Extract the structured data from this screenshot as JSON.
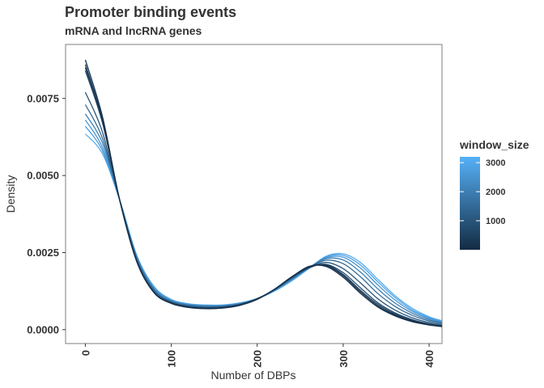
{
  "chart_data": {
    "type": "line",
    "title": "Promoter binding events",
    "subtitle": "mRNA and lncRNA genes",
    "xlabel": "Number of DBPs",
    "ylabel": "Density",
    "xlim": [
      -23,
      415
    ],
    "ylim": [
      -0.00045,
      0.00925
    ],
    "xticks": [
      0,
      100,
      200,
      300,
      400
    ],
    "yticks": [
      0.0,
      0.0025,
      0.005,
      0.0075
    ],
    "ytick_labels": [
      "0.0000",
      "0.0025",
      "0.0050",
      "0.0075"
    ],
    "grid": false,
    "legend": {
      "title": "window_size",
      "position": "right",
      "min": 0,
      "max": 3200,
      "ticks": [
        1000,
        2000,
        3000
      ],
      "color_low": "#132B43",
      "color_high": "#56B1F7"
    },
    "series": [
      {
        "window_size": 100,
        "x": [
          0,
          20,
          40,
          60,
          80,
          100,
          120,
          140,
          160,
          180,
          200,
          220,
          240,
          260,
          280,
          300,
          320,
          340,
          360,
          380,
          400,
          415
        ],
        "y": [
          0.00875,
          0.0069,
          0.0042,
          0.0022,
          0.0012,
          0.00085,
          0.00072,
          0.00068,
          0.0007,
          0.00079,
          0.00098,
          0.0013,
          0.0017,
          0.00205,
          0.00205,
          0.0017,
          0.00118,
          0.00074,
          0.00045,
          0.00026,
          0.00015,
          0.0001
        ]
      },
      {
        "window_size": 250,
        "x": [
          0,
          20,
          40,
          60,
          80,
          100,
          120,
          140,
          160,
          180,
          200,
          220,
          240,
          260,
          280,
          300,
          320,
          340,
          360,
          380,
          400,
          415
        ],
        "y": [
          0.0086,
          0.0068,
          0.0042,
          0.0022,
          0.0012,
          0.00086,
          0.00073,
          0.00069,
          0.00071,
          0.0008,
          0.00099,
          0.00131,
          0.00171,
          0.00204,
          0.00208,
          0.00175,
          0.00123,
          0.00078,
          0.00048,
          0.00028,
          0.00016,
          0.00011
        ]
      },
      {
        "window_size": 500,
        "x": [
          0,
          20,
          40,
          60,
          80,
          100,
          120,
          140,
          160,
          180,
          200,
          220,
          240,
          260,
          280,
          300,
          320,
          340,
          360,
          380,
          400,
          415
        ],
        "y": [
          0.0085,
          0.00675,
          0.0042,
          0.0022,
          0.0012,
          0.00086,
          0.00073,
          0.00069,
          0.00071,
          0.0008,
          0.00099,
          0.00131,
          0.00171,
          0.00202,
          0.0021,
          0.00179,
          0.00128,
          0.00083,
          0.00051,
          0.0003,
          0.00017,
          0.00012
        ]
      },
      {
        "window_size": 750,
        "x": [
          0,
          20,
          40,
          60,
          80,
          100,
          120,
          140,
          160,
          180,
          200,
          220,
          240,
          260,
          280,
          300,
          320,
          340,
          360,
          380,
          400,
          415
        ],
        "y": [
          0.0084,
          0.0067,
          0.0042,
          0.0022,
          0.00121,
          0.00087,
          0.00074,
          0.0007,
          0.00072,
          0.00081,
          0.001,
          0.00131,
          0.0017,
          0.002,
          0.00212,
          0.00185,
          0.00136,
          0.00088,
          0.00055,
          0.00033,
          0.00019,
          0.00013
        ]
      },
      {
        "window_size": 1000,
        "x": [
          0,
          20,
          40,
          60,
          80,
          100,
          120,
          140,
          160,
          180,
          200,
          220,
          240,
          260,
          280,
          300,
          320,
          340,
          360,
          380,
          400,
          415
        ],
        "y": [
          0.0077,
          0.0064,
          0.0042,
          0.00225,
          0.00124,
          0.00089,
          0.00076,
          0.00072,
          0.00074,
          0.00082,
          0.00101,
          0.0013,
          0.00168,
          0.002,
          0.00218,
          0.00198,
          0.00152,
          0.00101,
          0.00064,
          0.00039,
          0.00023,
          0.00016
        ]
      },
      {
        "window_size": 1500,
        "x": [
          0,
          20,
          40,
          60,
          80,
          100,
          120,
          140,
          160,
          180,
          200,
          220,
          240,
          260,
          280,
          300,
          320,
          340,
          360,
          380,
          400,
          415
        ],
        "y": [
          0.0073,
          0.0062,
          0.0042,
          0.0023,
          0.00128,
          0.00091,
          0.00078,
          0.00074,
          0.00075,
          0.00083,
          0.00101,
          0.00129,
          0.00166,
          0.00201,
          0.00225,
          0.00214,
          0.00172,
          0.00118,
          0.00076,
          0.00047,
          0.00028,
          0.0002
        ]
      },
      {
        "window_size": 2000,
        "x": [
          0,
          20,
          40,
          60,
          80,
          100,
          120,
          140,
          160,
          180,
          200,
          220,
          240,
          260,
          280,
          300,
          320,
          340,
          360,
          380,
          400,
          415
        ],
        "y": [
          0.007,
          0.00605,
          0.0042,
          0.00232,
          0.00131,
          0.00093,
          0.0008,
          0.00076,
          0.00077,
          0.00084,
          0.00101,
          0.00128,
          0.00164,
          0.00201,
          0.0023,
          0.00226,
          0.00187,
          0.00133,
          0.00087,
          0.00054,
          0.00032,
          0.00023
        ]
      },
      {
        "window_size": 2500,
        "x": [
          0,
          20,
          40,
          60,
          80,
          100,
          120,
          140,
          160,
          180,
          200,
          220,
          240,
          260,
          280,
          300,
          320,
          340,
          360,
          380,
          400,
          415
        ],
        "y": [
          0.0068,
          0.0059,
          0.0042,
          0.00235,
          0.00134,
          0.00095,
          0.00082,
          0.00078,
          0.00078,
          0.00085,
          0.00101,
          0.00127,
          0.00162,
          0.002,
          0.00233,
          0.00235,
          0.002,
          0.00146,
          0.00097,
          0.0006,
          0.00036,
          0.00025
        ]
      },
      {
        "window_size": 2800,
        "x": [
          0,
          20,
          40,
          60,
          80,
          100,
          120,
          140,
          160,
          180,
          200,
          220,
          240,
          260,
          280,
          300,
          320,
          340,
          360,
          380,
          400,
          415
        ],
        "y": [
          0.0066,
          0.0058,
          0.0042,
          0.00238,
          0.00137,
          0.00097,
          0.00083,
          0.00079,
          0.00079,
          0.00086,
          0.00101,
          0.00126,
          0.0016,
          0.00199,
          0.00236,
          0.00241,
          0.0021,
          0.00156,
          0.00105,
          0.00065,
          0.00039,
          0.00027
        ]
      },
      {
        "window_size": 3100,
        "x": [
          0,
          20,
          40,
          60,
          80,
          100,
          120,
          140,
          160,
          180,
          200,
          220,
          240,
          260,
          280,
          300,
          320,
          340,
          360,
          380,
          400,
          415
        ],
        "y": [
          0.00635,
          0.0057,
          0.0042,
          0.0024,
          0.0014,
          0.00098,
          0.00084,
          0.0008,
          0.0008,
          0.00087,
          0.00101,
          0.00125,
          0.00158,
          0.00198,
          0.00238,
          0.00246,
          0.00218,
          0.00164,
          0.00111,
          0.0007,
          0.00042,
          0.00029
        ]
      }
    ]
  }
}
